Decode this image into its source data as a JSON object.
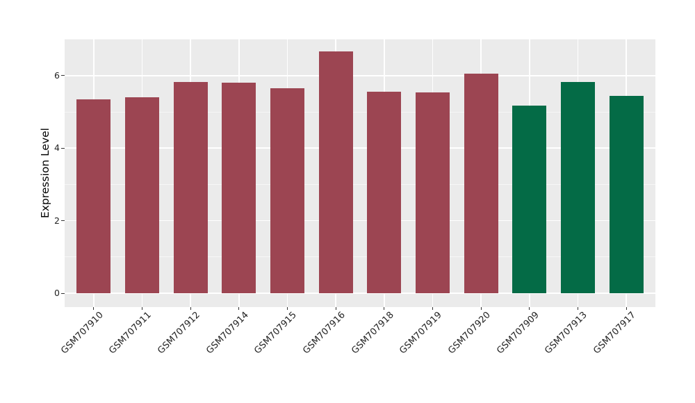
{
  "chart_data": {
    "type": "bar",
    "title": "",
    "xlabel": "",
    "ylabel": "Expression Level",
    "categories": [
      "GSM707910",
      "GSM707911",
      "GSM707912",
      "GSM707914",
      "GSM707915",
      "GSM707916",
      "GSM707918",
      "GSM707919",
      "GSM707920",
      "GSM707909",
      "GSM707913",
      "GSM707917"
    ],
    "values": [
      5.35,
      5.4,
      5.82,
      5.81,
      5.65,
      6.67,
      5.55,
      5.54,
      6.05,
      5.17,
      5.83,
      5.44
    ],
    "bar_colors": [
      "#9C4552",
      "#9C4552",
      "#9C4552",
      "#9C4552",
      "#9C4552",
      "#9C4552",
      "#9C4552",
      "#9C4552",
      "#9C4552",
      "#046B46",
      "#046B46",
      "#046B46"
    ],
    "yticks": [
      0,
      2,
      4,
      6
    ],
    "yticks_minor": [
      1,
      3,
      5,
      7
    ],
    "ylim": [
      0,
      7
    ],
    "legend": "none",
    "grid": "on",
    "panel_background": "#EBEBEB",
    "gridline_color": "#FFFFFF",
    "tick_color": "#333333",
    "bar_group_colors": {
      "group_a": "#9C4552",
      "group_b": "#046B46"
    }
  }
}
